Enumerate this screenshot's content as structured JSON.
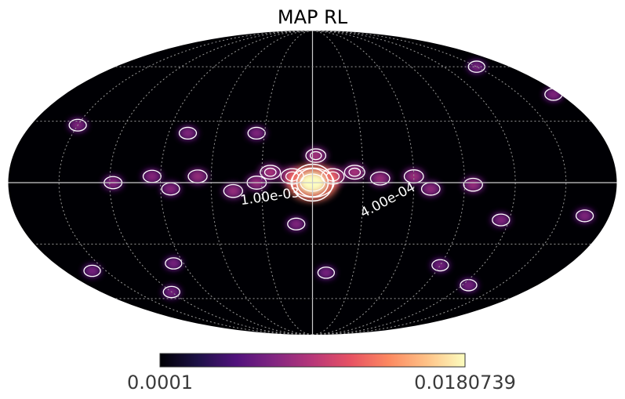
{
  "chart_data": {
    "type": "heatmap",
    "projection": "mollweide",
    "title": "MAP RL",
    "colormap": "magma",
    "colorbar": {
      "min": 0.0001,
      "max": 0.0180739,
      "min_label": "0.0001",
      "max_label": "0.0180739",
      "stops": [
        "#000004",
        "#1d1147",
        "#51127c",
        "#822681",
        "#b73779",
        "#e75263",
        "#fc8961",
        "#fec287",
        "#fcfdbf"
      ]
    },
    "grid": true,
    "graticule": {
      "longitude_step_deg": 30,
      "latitude_step_deg": 30
    },
    "contour_levels": [
      0.0004,
      0.001
    ],
    "contour_labels": [
      "1.00e-03",
      "4.00e-04"
    ],
    "sources": [
      {
        "lon": 0,
        "lat": 0,
        "value": 0.0180739
      },
      {
        "lon": 12,
        "lat": 3,
        "value": 0.0025
      },
      {
        "lon": -12,
        "lat": 3,
        "value": 0.0025
      },
      {
        "lon": 25,
        "lat": 5,
        "value": 0.0012
      },
      {
        "lon": -25,
        "lat": 5,
        "value": 0.0012
      },
      {
        "lon": -2,
        "lat": 13,
        "value": 0.0011
      },
      {
        "lon": -40,
        "lat": 2,
        "value": 0.0009
      },
      {
        "lon": -60,
        "lat": 3,
        "value": 0.0009
      },
      {
        "lon": -70,
        "lat": -3,
        "value": 0.0007
      },
      {
        "lon": -95,
        "lat": -1,
        "value": 0.0008
      },
      {
        "lon": 33,
        "lat": 0,
        "value": 0.0009
      },
      {
        "lon": 47,
        "lat": -4,
        "value": 0.0008
      },
      {
        "lon": 68,
        "lat": 3,
        "value": 0.0008
      },
      {
        "lon": 84,
        "lat": -3,
        "value": 0.0006
      },
      {
        "lon": 95,
        "lat": 3,
        "value": 0.0006
      },
      {
        "lon": 118,
        "lat": 0,
        "value": 0.0006
      },
      {
        "lon": 10,
        "lat": -20,
        "value": 0.0005
      },
      {
        "lon": -165,
        "lat": -16,
        "value": 0.0005
      },
      {
        "lon": -115,
        "lat": -18,
        "value": 0.0005
      },
      {
        "lon": -175,
        "lat": 44,
        "value": 0.0005
      },
      {
        "lon": 35,
        "lat": 24,
        "value": 0.0005
      },
      {
        "lon": 78,
        "lat": 24,
        "value": 0.0005
      },
      {
        "lon": 150,
        "lat": 28,
        "value": 0.0005
      },
      {
        "lon": -150,
        "lat": 60,
        "value": 0.0004
      },
      {
        "lon": -10,
        "lat": -45,
        "value": 0.0004
      },
      {
        "lon": 97,
        "lat": -40,
        "value": 0.0004
      },
      {
        "lon": 160,
        "lat": -44,
        "value": 0.0004
      },
      {
        "lon": -125,
        "lat": -52,
        "value": 0.0004
      },
      {
        "lon": 120,
        "lat": -56,
        "value": 0.0004
      },
      {
        "lon": -90,
        "lat": -41,
        "value": 0.0004
      }
    ]
  }
}
